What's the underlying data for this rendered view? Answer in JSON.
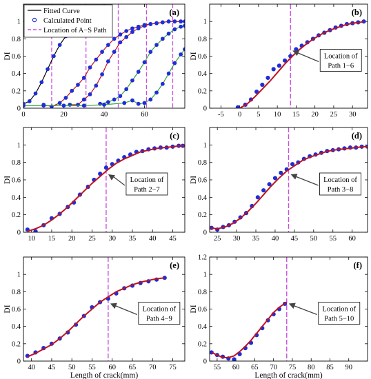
{
  "colors": {
    "fitted": "#c1121f",
    "fitted_dark": "#000000",
    "fitted_green": "#3aa53a",
    "points": "#1d2fd6",
    "path_line": "#c94fe0",
    "annotation_arrow": "#444444"
  },
  "shared": {
    "xlabel": "Length of crack(mm)",
    "ylabel": "DI"
  },
  "chart_data": [
    {
      "id": "a",
      "panel_label": "(a)",
      "type": "line",
      "xlim": [
        0,
        80
      ],
      "ylim": [
        0,
        1.2
      ],
      "xticks": [
        0,
        20,
        40,
        60
      ],
      "yticks": [
        0,
        0.2,
        0.4,
        0.6,
        0.8,
        1
      ],
      "ytick_labels": [
        "0",
        "0.2",
        "0.4",
        "0.6",
        "0.8",
        "1"
      ],
      "legend": {
        "location": "top-left",
        "entries": [
          "Fitted Curve",
          "Calculated Point",
          "Location of A−S Path"
        ]
      },
      "path_locations": [
        14,
        31,
        47,
        61,
        74
      ],
      "series": [
        {
          "x": [
            0,
            3,
            6,
            9,
            12,
            15,
            18,
            21,
            24,
            27,
            30,
            33,
            36,
            39
          ],
          "y": [
            0.05,
            0.08,
            0.17,
            0.3,
            0.45,
            0.6,
            0.73,
            0.83,
            0.9,
            0.95,
            0.98,
            0.99,
            1.0,
            1.0
          ]
        },
        {
          "x": [
            10,
            14,
            18,
            21,
            24,
            27,
            30,
            33,
            36,
            39,
            42,
            45,
            48,
            51,
            54,
            57,
            60,
            63,
            66,
            69,
            72,
            75,
            78,
            80
          ],
          "y": [
            0.04,
            0.02,
            0.06,
            0.12,
            0.2,
            0.27,
            0.35,
            0.47,
            0.56,
            0.65,
            0.73,
            0.8,
            0.85,
            0.89,
            0.92,
            0.94,
            0.96,
            0.97,
            0.98,
            0.99,
            1.0,
            1.0,
            1.0,
            1.0
          ]
        },
        {
          "x": [
            23,
            27,
            30,
            33,
            36,
            39,
            42,
            45,
            48,
            51,
            54,
            57,
            60,
            63,
            66,
            69,
            72,
            75,
            78,
            80
          ],
          "y": [
            0.04,
            0.04,
            0.1,
            0.16,
            0.26,
            0.39,
            0.54,
            0.65,
            0.76,
            0.82,
            0.88,
            0.92,
            0.95,
            0.97,
            0.98,
            0.99,
            1.0,
            1.0,
            1.0,
            1.0
          ]
        },
        {
          "x": [
            38,
            42,
            45,
            48,
            51,
            54,
            57,
            60,
            63,
            66,
            69,
            72,
            75,
            78,
            80
          ],
          "y": [
            0.05,
            0.07,
            0.1,
            0.14,
            0.22,
            0.32,
            0.42,
            0.53,
            0.65,
            0.73,
            0.8,
            0.86,
            0.91,
            0.94,
            0.95
          ]
        },
        {
          "x": [
            0,
            10,
            20,
            30,
            40,
            50,
            54,
            57,
            60,
            63,
            66,
            69,
            72,
            75,
            78,
            80
          ],
          "y": [
            0.03,
            0.03,
            0.03,
            0.03,
            0.04,
            0.06,
            0.09,
            0.05,
            0.06,
            0.1,
            0.18,
            0.28,
            0.4,
            0.52,
            0.62,
            0.68
          ]
        }
      ]
    },
    {
      "id": "b",
      "panel_label": "(b)",
      "type": "line",
      "xlim": [
        -8,
        34
      ],
      "ylim": [
        0,
        1.2
      ],
      "xticks": [
        -5,
        0,
        5,
        10,
        15,
        20,
        25,
        30
      ],
      "yticks": [
        0,
        0.2,
        0.4,
        0.6,
        0.8,
        1
      ],
      "ytick_labels": [
        "0",
        "0.2",
        "0.4",
        "0.6",
        "0.8",
        "1"
      ],
      "path_location": 13.5,
      "annotation": [
        "Location of",
        "Path 1−6"
      ],
      "points_x": [
        -0.5,
        1.5,
        3,
        4.5,
        6,
        7.5,
        9,
        10.5,
        12,
        13.5,
        15,
        16.5,
        18,
        19.5,
        21,
        22.5,
        24,
        25.5,
        27,
        28.5,
        30,
        31.5,
        33
      ],
      "points_y": [
        0.01,
        0.04,
        0.1,
        0.19,
        0.27,
        0.35,
        0.45,
        0.49,
        0.55,
        0.6,
        0.68,
        0.72,
        0.76,
        0.8,
        0.84,
        0.87,
        0.9,
        0.93,
        0.95,
        0.97,
        0.98,
        0.99,
        1.0
      ],
      "curve_x": [
        0,
        2,
        4,
        6,
        8,
        10,
        12,
        14,
        16,
        18,
        20,
        22,
        24,
        26,
        28,
        30,
        32,
        33
      ],
      "curve_y": [
        0.0,
        0.05,
        0.13,
        0.22,
        0.31,
        0.41,
        0.51,
        0.6,
        0.68,
        0.75,
        0.81,
        0.86,
        0.9,
        0.93,
        0.96,
        0.98,
        0.99,
        1.0
      ]
    },
    {
      "id": "c",
      "panel_label": "(c)",
      "type": "line",
      "xlim": [
        8,
        48
      ],
      "ylim": [
        0,
        1.2
      ],
      "xticks": [
        10,
        15,
        20,
        25,
        30,
        35,
        40,
        45
      ],
      "yticks": [
        0,
        0.2,
        0.4,
        0.6,
        0.8,
        1
      ],
      "ytick_labels": [
        "0",
        "0.2",
        "0.4",
        "0.6",
        "0.8",
        "1"
      ],
      "path_location": 28.5,
      "annotation": [
        "Location of",
        "Path 2−7"
      ],
      "points_x": [
        9,
        11,
        13,
        15,
        17,
        19,
        20.5,
        22,
        24,
        25.5,
        27,
        28.5,
        30,
        31.5,
        33,
        34.5,
        36,
        37.5,
        39,
        40.5,
        42,
        43.5,
        45,
        46.5,
        47.5
      ],
      "points_y": [
        0.03,
        0.01,
        0.08,
        0.16,
        0.21,
        0.29,
        0.34,
        0.43,
        0.52,
        0.6,
        0.67,
        0.74,
        0.78,
        0.82,
        0.86,
        0.89,
        0.92,
        0.93,
        0.95,
        0.96,
        0.97,
        0.97,
        0.98,
        0.99,
        0.99
      ],
      "curve_x": [
        9,
        11,
        13,
        15,
        17,
        19,
        21,
        23,
        25,
        27,
        29,
        31,
        33,
        35,
        37,
        39,
        41,
        43,
        45,
        47,
        48
      ],
      "curve_y": [
        0.01,
        0.04,
        0.08,
        0.14,
        0.21,
        0.29,
        0.38,
        0.47,
        0.56,
        0.64,
        0.72,
        0.79,
        0.84,
        0.88,
        0.92,
        0.94,
        0.96,
        0.97,
        0.98,
        0.99,
        0.99
      ]
    },
    {
      "id": "d",
      "panel_label": "(d)",
      "type": "line",
      "xlim": [
        23,
        64
      ],
      "ylim": [
        0,
        1.2
      ],
      "xticks": [
        25,
        30,
        35,
        40,
        45,
        50,
        55,
        60
      ],
      "yticks": [
        0,
        0.2,
        0.4,
        0.6,
        0.8,
        1
      ],
      "ytick_labels": [
        "0",
        "0.2",
        "0.4",
        "0.6",
        "0.8",
        "1"
      ],
      "path_location": 43.5,
      "annotation": [
        "Location of",
        "Path 3−8"
      ],
      "points_x": [
        23.5,
        25,
        26.5,
        28,
        29.5,
        31,
        32.5,
        34,
        35.5,
        37,
        38.5,
        40,
        41.5,
        43,
        44.5,
        46,
        47.5,
        49,
        50.5,
        52,
        53.5,
        55,
        56.5,
        58,
        59.5,
        61,
        62.5,
        64
      ],
      "points_y": [
        0.05,
        0.03,
        0.06,
        0.08,
        0.12,
        0.17,
        0.22,
        0.3,
        0.4,
        0.48,
        0.55,
        0.62,
        0.68,
        0.72,
        0.78,
        0.8,
        0.84,
        0.87,
        0.89,
        0.91,
        0.93,
        0.94,
        0.95,
        0.96,
        0.97,
        0.97,
        0.98,
        0.98
      ],
      "curve_x": [
        23,
        25,
        27,
        29,
        31,
        33,
        35,
        37,
        39,
        41,
        43,
        45,
        47,
        49,
        51,
        53,
        55,
        57,
        59,
        61,
        63,
        64
      ],
      "curve_y": [
        0.05,
        0.04,
        0.06,
        0.1,
        0.16,
        0.24,
        0.33,
        0.43,
        0.53,
        0.62,
        0.7,
        0.76,
        0.82,
        0.86,
        0.89,
        0.92,
        0.94,
        0.95,
        0.96,
        0.97,
        0.98,
        0.98
      ]
    },
    {
      "id": "e",
      "panel_label": "(e)",
      "type": "line",
      "xlim": [
        38,
        78
      ],
      "ylim": [
        0,
        1.2
      ],
      "xticks": [
        40,
        45,
        50,
        55,
        60,
        65,
        70,
        75
      ],
      "yticks": [
        0,
        0.2,
        0.4,
        0.6,
        0.8,
        1
      ],
      "ytick_labels": [
        "0",
        "0.2",
        "0.4",
        "0.6",
        "0.8",
        "1"
      ],
      "path_location": 59,
      "annotation": [
        "Location of",
        "Path 4−9"
      ],
      "points_x": [
        39,
        41,
        43,
        45,
        47,
        49,
        51,
        53,
        55,
        57,
        59,
        61,
        63,
        65,
        67,
        69,
        71,
        73
      ],
      "points_y": [
        0.06,
        0.1,
        0.15,
        0.2,
        0.26,
        0.33,
        0.42,
        0.52,
        0.62,
        0.68,
        0.72,
        0.78,
        0.84,
        0.87,
        0.9,
        0.92,
        0.94,
        0.96
      ],
      "curve_x": [
        39,
        41,
        43,
        45,
        47,
        49,
        51,
        53,
        55,
        57,
        59,
        61,
        63,
        65,
        67,
        69,
        71,
        73
      ],
      "curve_y": [
        0.05,
        0.09,
        0.14,
        0.19,
        0.26,
        0.34,
        0.43,
        0.52,
        0.6,
        0.68,
        0.74,
        0.8,
        0.84,
        0.88,
        0.91,
        0.93,
        0.95,
        0.96
      ]
    },
    {
      "id": "f",
      "panel_label": "(f)",
      "type": "line",
      "xlim": [
        53,
        95
      ],
      "ylim": [
        0,
        1.2
      ],
      "xticks": [
        55,
        60,
        65,
        70,
        75,
        80,
        85,
        90
      ],
      "yticks": [
        0,
        0.2,
        0.4,
        0.6,
        0.8,
        1,
        1.2
      ],
      "ytick_labels": [
        "0",
        "0.2",
        "0.4",
        "0.6",
        "0.8",
        "1",
        "1.2"
      ],
      "path_location": 73.5,
      "annotation": [
        "Location of",
        "Path 5−10"
      ],
      "points_x": [
        53.5,
        55,
        56.5,
        58,
        59.5,
        61,
        62.5,
        64,
        65.5,
        67,
        68.5,
        70,
        71.5,
        73
      ],
      "points_y": [
        0.1,
        0.07,
        0.05,
        0.03,
        0.02,
        0.08,
        0.15,
        0.21,
        0.3,
        0.38,
        0.47,
        0.54,
        0.6,
        0.66
      ],
      "curve_x": [
        53.5,
        55,
        56.5,
        58,
        59.5,
        61,
        62.5,
        64,
        65.5,
        67,
        68.5,
        70,
        71.5,
        73.5
      ],
      "curve_y": [
        0.1,
        0.07,
        0.04,
        0.04,
        0.06,
        0.11,
        0.17,
        0.24,
        0.32,
        0.4,
        0.48,
        0.56,
        0.62,
        0.68
      ]
    }
  ]
}
